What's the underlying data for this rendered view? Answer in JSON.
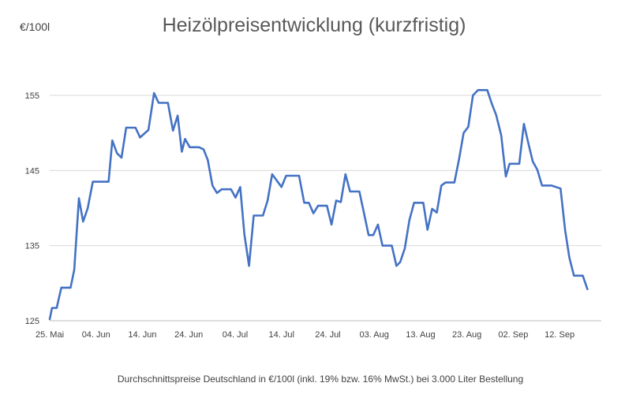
{
  "chart_data": {
    "type": "line",
    "title": "Heizölpreisentwicklung (kurzfristig)",
    "ylabel": "€/100l",
    "footnote": "Durchschnittspreise Deutschland in €/100l (inkl. 19% bzw. 16%  MwSt.) bei 3.000 Liter Bestellung",
    "ylim": [
      125,
      155
    ],
    "yticks": [
      125,
      135,
      145,
      155
    ],
    "xlim": [
      0,
      119
    ],
    "xticks": [
      {
        "x": 0,
        "label": "25. Mai"
      },
      {
        "x": 10,
        "label": "04. Jun"
      },
      {
        "x": 20,
        "label": "14. Jun"
      },
      {
        "x": 30,
        "label": "24. Jun"
      },
      {
        "x": 40,
        "label": "04. Jul"
      },
      {
        "x": 50,
        "label": "14. Jul"
      },
      {
        "x": 60,
        "label": "24. Jul"
      },
      {
        "x": 70,
        "label": "03. Aug"
      },
      {
        "x": 80,
        "label": "13. Aug"
      },
      {
        "x": 90,
        "label": "23. Aug"
      },
      {
        "x": 100,
        "label": "02. Sep"
      },
      {
        "x": 110,
        "label": "12. Sep"
      }
    ],
    "grid": true,
    "legend": "none",
    "color": "#4472c4",
    "series": [
      {
        "points": [
          [
            0,
            125.2
          ],
          [
            0.5,
            126.7
          ],
          [
            1.5,
            126.7
          ],
          [
            2.5,
            129.4
          ],
          [
            4.5,
            129.4
          ],
          [
            5.3,
            131.8
          ],
          [
            6.3,
            141.3
          ],
          [
            7.2,
            138.2
          ],
          [
            8.2,
            140.0
          ],
          [
            9.3,
            143.5
          ],
          [
            12.7,
            143.5
          ],
          [
            13.5,
            149.0
          ],
          [
            14.5,
            147.3
          ],
          [
            15.5,
            146.7
          ],
          [
            16.5,
            150.7
          ],
          [
            18.5,
            150.7
          ],
          [
            19.5,
            149.4
          ],
          [
            21.3,
            150.4
          ],
          [
            22.5,
            155.3
          ],
          [
            23.5,
            154.0
          ],
          [
            25.5,
            154.0
          ],
          [
            26.6,
            150.3
          ],
          [
            27.6,
            152.3
          ],
          [
            28.5,
            147.5
          ],
          [
            29.2,
            149.2
          ],
          [
            30.2,
            148.1
          ],
          [
            32.2,
            148.1
          ],
          [
            33.2,
            147.8
          ],
          [
            34.1,
            146.4
          ],
          [
            35.1,
            143.0
          ],
          [
            36.1,
            142.0
          ],
          [
            37.1,
            142.5
          ],
          [
            39.1,
            142.5
          ],
          [
            40.1,
            141.4
          ],
          [
            41.1,
            142.8
          ],
          [
            42.0,
            136.5
          ],
          [
            43.0,
            132.3
          ],
          [
            44.0,
            139.0
          ],
          [
            46.0,
            139.0
          ],
          [
            47.0,
            141.0
          ],
          [
            48.0,
            144.5
          ],
          [
            50.0,
            142.8
          ],
          [
            51.0,
            144.3
          ],
          [
            53.8,
            144.3
          ],
          [
            54.9,
            140.7
          ],
          [
            55.9,
            140.7
          ],
          [
            56.9,
            139.3
          ],
          [
            57.9,
            140.3
          ],
          [
            59.8,
            140.3
          ],
          [
            60.8,
            137.8
          ],
          [
            61.8,
            141.0
          ],
          [
            62.8,
            140.8
          ],
          [
            63.8,
            144.5
          ],
          [
            64.8,
            142.2
          ],
          [
            66.8,
            142.2
          ],
          [
            67.8,
            139.3
          ],
          [
            68.8,
            136.4
          ],
          [
            69.8,
            136.4
          ],
          [
            70.8,
            137.8
          ],
          [
            71.8,
            135.0
          ],
          [
            73.8,
            135.0
          ],
          [
            74.8,
            132.3
          ],
          [
            75.6,
            132.8
          ],
          [
            76.6,
            134.6
          ],
          [
            77.6,
            138.4
          ],
          [
            78.6,
            140.7
          ],
          [
            80.6,
            140.7
          ],
          [
            81.5,
            137.1
          ],
          [
            82.5,
            139.9
          ],
          [
            83.5,
            139.4
          ],
          [
            84.5,
            143.0
          ],
          [
            85.4,
            143.4
          ],
          [
            87.3,
            143.4
          ],
          [
            88.3,
            146.5
          ],
          [
            89.3,
            150.0
          ],
          [
            90.3,
            150.8
          ],
          [
            91.3,
            155.0
          ],
          [
            92.4,
            155.7
          ],
          [
            94.4,
            155.7
          ],
          [
            95.3,
            154.0
          ],
          [
            96.3,
            152.4
          ],
          [
            97.4,
            149.7
          ],
          [
            98.4,
            144.2
          ],
          [
            99.2,
            145.9
          ],
          [
            101.3,
            145.9
          ],
          [
            102.3,
            151.2
          ],
          [
            103.3,
            148.5
          ],
          [
            104.2,
            146.2
          ],
          [
            105.2,
            145.1
          ],
          [
            106.2,
            143.0
          ],
          [
            108.2,
            143.0
          ],
          [
            110.2,
            142.6
          ],
          [
            111.2,
            137.0
          ],
          [
            112.1,
            133.4
          ],
          [
            113.1,
            131.0
          ],
          [
            115.0,
            131.0
          ],
          [
            116.0,
            129.2
          ]
        ]
      }
    ]
  }
}
